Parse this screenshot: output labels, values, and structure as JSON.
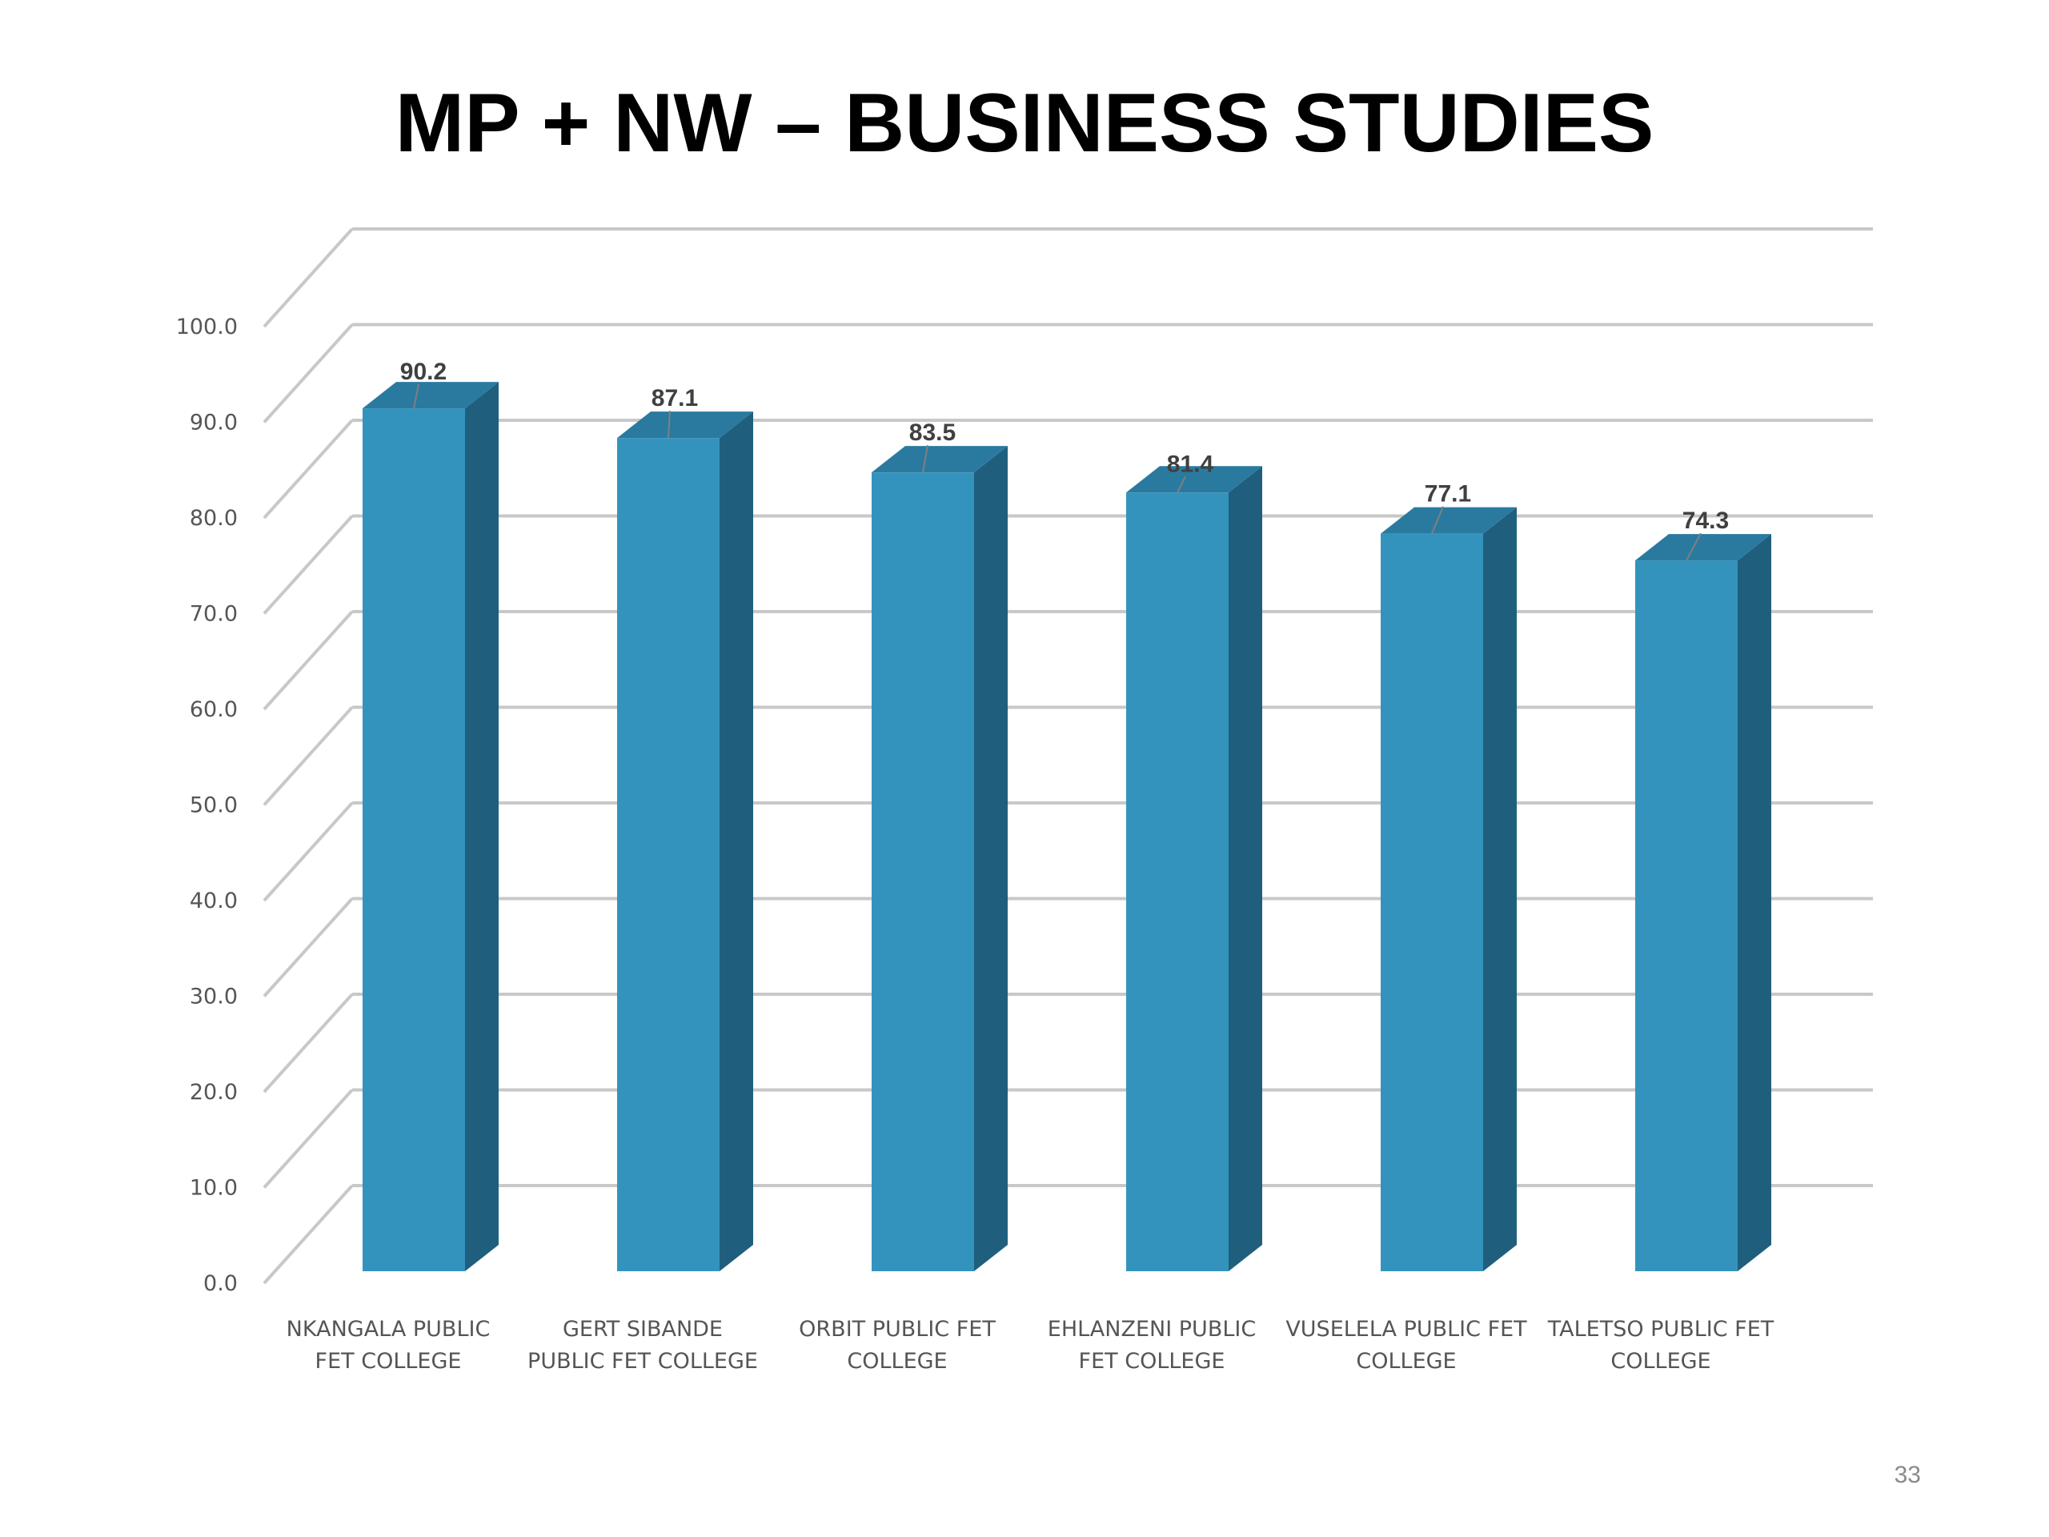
{
  "title": "MP + NW – BUSINESS STUDIES",
  "page_number": "33",
  "colors": {
    "bar_front": "#3393bd",
    "bar_side": "#1f5f7d",
    "bar_top": "#2a7aa0",
    "grid": "#c8c8c8"
  },
  "chart_data": {
    "type": "bar",
    "style": "3d-column",
    "title": "",
    "xlabel": "",
    "ylabel": "",
    "ylim": [
      0,
      100
    ],
    "ytick_step": 10,
    "ytick_labels": [
      "0.0",
      "10.0",
      "20.0",
      "30.0",
      "40.0",
      "50.0",
      "60.0",
      "70.0",
      "80.0",
      "90.0",
      "100.0"
    ],
    "grid": true,
    "legend": "none",
    "categories": [
      [
        "NKANGALA PUBLIC",
        "FET COLLEGE"
      ],
      [
        "GERT SIBANDE",
        "PUBLIC FET COLLEGE"
      ],
      [
        "ORBIT PUBLIC FET",
        "COLLEGE"
      ],
      [
        "EHLANZENI PUBLIC",
        "FET COLLEGE"
      ],
      [
        "VUSELELA PUBLIC FET",
        "COLLEGE"
      ],
      [
        "TALETSO PUBLIC FET",
        "COLLEGE"
      ]
    ],
    "values": [
      90.2,
      87.1,
      83.5,
      81.4,
      77.1,
      74.3
    ],
    "data_labels": [
      "90.2",
      "87.1",
      "83.5",
      "81.4",
      "77.1",
      "74.3"
    ]
  }
}
